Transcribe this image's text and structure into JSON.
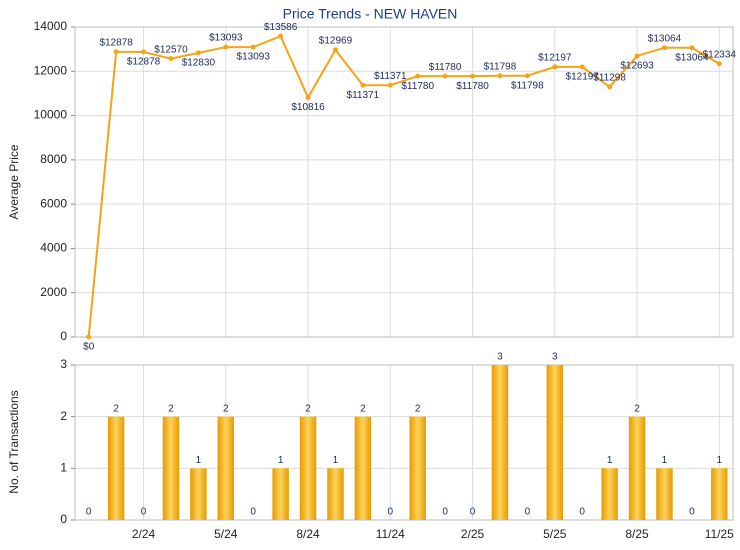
{
  "chart_data": [
    {
      "type": "line",
      "title": "Price Trends - NEW HAVEN",
      "y_label": "Average Price",
      "color": "#f5a418",
      "categories": [
        null,
        null,
        null,
        null,
        null,
        null,
        null,
        null,
        null,
        null,
        null,
        null,
        null,
        null,
        null,
        null,
        null,
        null,
        null,
        null,
        null,
        null,
        null,
        null
      ],
      "values": [
        0,
        12878,
        12878,
        12570,
        12830,
        13093,
        13093,
        13586,
        10816,
        12969,
        11371,
        11371,
        11780,
        11780,
        11780,
        11798,
        11798,
        12197,
        12197,
        11298,
        12693,
        13064,
        13064,
        12334
      ],
      "value_labels": [
        "$0",
        "$12878",
        "$12878",
        "$12570",
        "$12830",
        "$13093",
        "$13093",
        "$13586",
        "$10816",
        "$12969",
        "$11371",
        "$11371",
        "$11780",
        "$11780",
        "$11780",
        "$11798",
        "$11798",
        "$12197",
        "$12197",
        "$11298",
        "$12693",
        "$13064",
        "$13064",
        "$12334"
      ],
      "ylim": [
        0,
        14000
      ],
      "yticks": [
        0,
        2000,
        4000,
        6000,
        8000,
        10000,
        12000,
        14000
      ],
      "grid": true
    },
    {
      "type": "bar",
      "y_label": "No. of Transactions",
      "color": "#f2b01e",
      "categories": [
        null,
        null,
        "2/24",
        null,
        null,
        "5/24",
        null,
        null,
        "8/24",
        null,
        null,
        "11/24",
        null,
        null,
        "2/25",
        null,
        null,
        "5/25",
        null,
        null,
        "8/25",
        null,
        null,
        "11/25"
      ],
      "values": [
        0,
        2,
        0,
        2,
        1,
        2,
        0,
        1,
        2,
        1,
        2,
        0,
        2,
        0,
        0,
        3,
        0,
        3,
        0,
        1,
        2,
        1,
        0,
        1
      ],
      "ylim": [
        0,
        3
      ],
      "yticks": [
        0,
        1,
        2,
        3
      ],
      "grid": true
    }
  ]
}
